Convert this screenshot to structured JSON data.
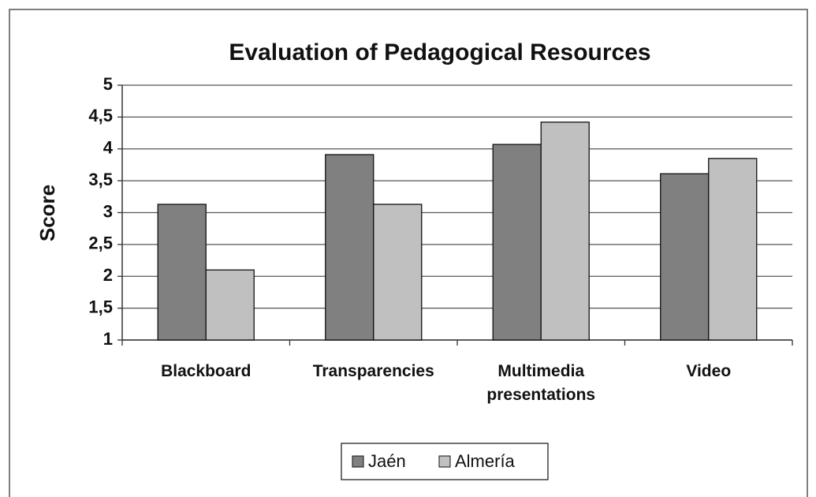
{
  "chart_data": {
    "type": "bar",
    "title": "Evaluation of Pedagogical Resources",
    "y_label": "Score",
    "categories": [
      "Blackboard",
      "Transparencies",
      "Multimedia presentations",
      "Video"
    ],
    "series": [
      {
        "name": "Jaén",
        "color": "#808080",
        "values": [
          3.13,
          3.91,
          4.07,
          3.61
        ]
      },
      {
        "name": "Almería",
        "color": "#c0c0c0",
        "values": [
          2.1,
          3.13,
          4.42,
          3.85
        ]
      }
    ],
    "ylim": [
      1,
      5
    ],
    "yticks": [
      1,
      {
        "value": 1.5,
        "label": "1,5"
      },
      2,
      {
        "value": 2.5,
        "label": "2,5"
      },
      3,
      {
        "value": 3.5,
        "label": "3,5"
      },
      4,
      {
        "value": 4.5,
        "label": "4,5"
      },
      5
    ],
    "grid": true,
    "legend": "bottom"
  }
}
